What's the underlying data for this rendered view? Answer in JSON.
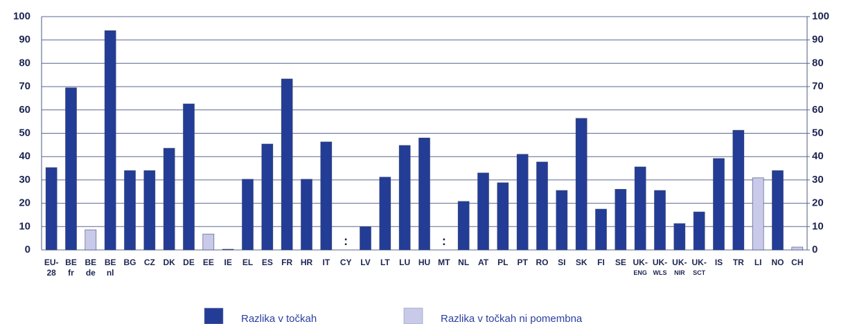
{
  "chart_data": {
    "type": "bar",
    "categories": [
      "EU-\n28",
      "BE\nfr",
      "BE\nde",
      "BE\nnl",
      "BG",
      "CZ",
      "DK",
      "DE",
      "EE",
      "IE",
      "EL",
      "ES",
      "FR",
      "HR",
      "IT",
      "CY",
      "LV",
      "LT",
      "LU",
      "HU",
      "MT",
      "NL",
      "AT",
      "PL",
      "PT",
      "RO",
      "SI",
      "SK",
      "FI",
      "SE",
      "UK-\nENG",
      "UK-\nWLS",
      "UK-\nNIR",
      "UK-\nSCT",
      "IS",
      "TR",
      "LI",
      "NO",
      "CH"
    ],
    "series": [
      {
        "name": "Razlika v točkah",
        "color": "#233d96",
        "values": [
          35.3,
          69.5,
          null,
          94,
          34,
          34,
          43.6,
          62.6,
          null,
          0.3,
          30.3,
          45.4,
          73.3,
          30.3,
          46.3,
          null,
          10,
          31.2,
          44.8,
          48,
          null,
          20.8,
          33,
          28.8,
          41,
          37.7,
          25.5,
          56.4,
          17.5,
          26,
          35.6,
          25.5,
          11.3,
          16.3,
          39.2,
          51.3,
          null,
          34,
          null
        ]
      },
      {
        "name": "Razlika v točkah ni pomembna",
        "color": "#c9c9ea",
        "values": [
          null,
          null,
          8.6,
          null,
          null,
          null,
          null,
          null,
          6.8,
          null,
          null,
          null,
          null,
          null,
          null,
          null,
          null,
          null,
          null,
          null,
          null,
          null,
          null,
          null,
          null,
          null,
          null,
          null,
          null,
          null,
          null,
          null,
          null,
          null,
          null,
          null,
          30.9,
          null,
          1.2
        ]
      }
    ],
    "annotations": [
      {
        "category": "CY",
        "text": ":"
      },
      {
        "category": "MT",
        "text": ":"
      }
    ],
    "ylim": [
      0,
      100
    ],
    "yticks": [
      0,
      10,
      20,
      30,
      40,
      50,
      60,
      70,
      80,
      90,
      100
    ],
    "y2lim": [
      0,
      100
    ],
    "y2ticks": [
      0,
      10,
      20,
      30,
      40,
      50,
      60,
      70,
      80,
      90,
      100
    ],
    "grid": true,
    "legend": "bottom"
  }
}
